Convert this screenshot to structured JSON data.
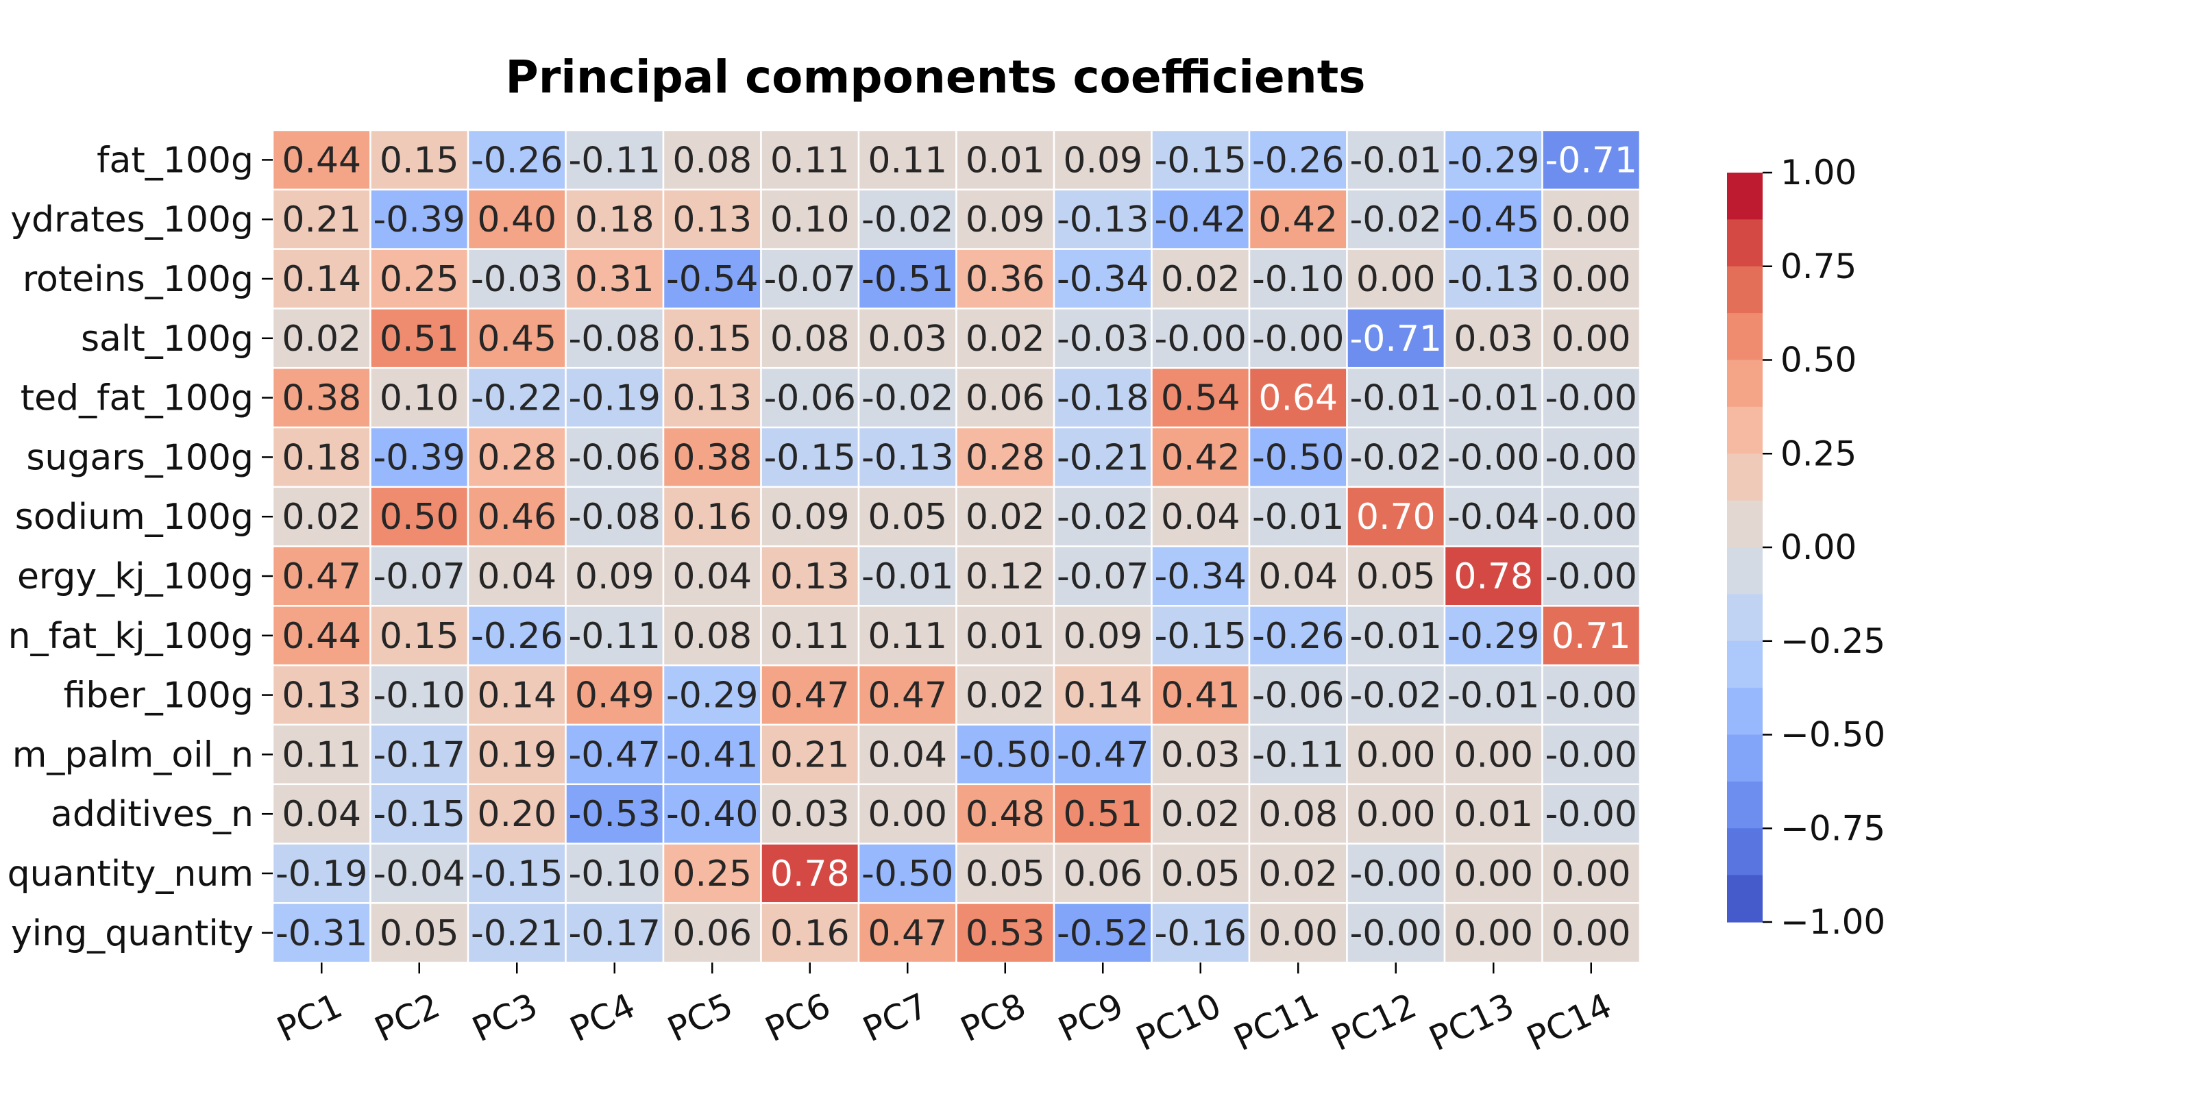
{
  "chart_data": {
    "type": "heatmap",
    "title": "Principal components coefficients",
    "columns": [
      "PC1",
      "PC2",
      "PC3",
      "PC4",
      "PC5",
      "PC6",
      "PC7",
      "PC8",
      "PC9",
      "PC10",
      "PC11",
      "PC12",
      "PC13",
      "PC14"
    ],
    "rows": [
      "fat_100g",
      "ydrates_100g",
      "roteins_100g",
      "salt_100g",
      "ted_fat_100g",
      "sugars_100g",
      "sodium_100g",
      "ergy_kj_100g",
      "n_fat_kj_100g",
      "fiber_100g",
      "m_palm_oil_n",
      "additives_n",
      "quantity_num",
      "ying_quantity"
    ],
    "values": [
      [
        0.44,
        0.15,
        -0.26,
        -0.11,
        0.08,
        0.11,
        0.11,
        0.01,
        0.09,
        -0.15,
        -0.26,
        -0.01,
        -0.29,
        -0.71
      ],
      [
        0.21,
        -0.39,
        0.4,
        0.18,
        0.13,
        0.1,
        -0.02,
        0.09,
        -0.13,
        -0.42,
        0.42,
        -0.02,
        -0.45,
        0.0
      ],
      [
        0.14,
        0.25,
        -0.03,
        0.31,
        -0.54,
        -0.07,
        -0.51,
        0.36,
        -0.34,
        0.02,
        -0.1,
        0.0,
        -0.13,
        0.0
      ],
      [
        0.02,
        0.51,
        0.45,
        -0.08,
        0.15,
        0.08,
        0.03,
        0.02,
        -0.03,
        -0.001,
        -0.001,
        -0.71,
        0.03,
        0.0
      ],
      [
        0.38,
        0.1,
        -0.22,
        -0.19,
        0.13,
        -0.06,
        -0.02,
        0.06,
        -0.18,
        0.54,
        0.64,
        -0.01,
        -0.01,
        -0.001
      ],
      [
        0.18,
        -0.39,
        0.28,
        -0.06,
        0.38,
        -0.15,
        -0.13,
        0.28,
        -0.21,
        0.42,
        -0.5,
        -0.02,
        -0.001,
        -0.001
      ],
      [
        0.02,
        0.5,
        0.46,
        -0.08,
        0.16,
        0.09,
        0.05,
        0.02,
        -0.02,
        0.04,
        -0.01,
        0.7,
        -0.04,
        -0.001
      ],
      [
        0.47,
        -0.07,
        0.04,
        0.09,
        0.04,
        0.13,
        -0.01,
        0.12,
        -0.07,
        -0.34,
        0.04,
        0.05,
        0.78,
        -0.001
      ],
      [
        0.44,
        0.15,
        -0.26,
        -0.11,
        0.08,
        0.11,
        0.11,
        0.01,
        0.09,
        -0.15,
        -0.26,
        -0.01,
        -0.29,
        0.71
      ],
      [
        0.13,
        -0.1,
        0.14,
        0.49,
        -0.29,
        0.47,
        0.47,
        0.02,
        0.14,
        0.41,
        -0.06,
        -0.02,
        -0.01,
        -0.001
      ],
      [
        0.11,
        -0.17,
        0.19,
        -0.47,
        -0.41,
        0.21,
        0.04,
        -0.5,
        -0.47,
        0.03,
        -0.11,
        0.0,
        0.0,
        -0.001
      ],
      [
        0.04,
        -0.15,
        0.2,
        -0.53,
        -0.4,
        0.03,
        0.0,
        0.48,
        0.51,
        0.02,
        0.08,
        0.0,
        0.01,
        -0.001
      ],
      [
        -0.19,
        -0.04,
        -0.15,
        -0.1,
        0.25,
        0.78,
        -0.5,
        0.05,
        0.06,
        0.05,
        0.02,
        -0.001,
        0.0,
        0.0
      ],
      [
        -0.31,
        0.05,
        -0.21,
        -0.17,
        0.06,
        0.16,
        0.47,
        0.53,
        -0.52,
        -0.16,
        0.0,
        -0.001,
        0.0,
        0.0
      ]
    ],
    "value_format": "2 decimals",
    "colormap": "coolwarm",
    "vmin": -1.0,
    "vmax": 1.0,
    "colorbar_ticks": [
      "1.00",
      "0.75",
      "0.50",
      "0.25",
      "0.00",
      "−0.25",
      "−0.50",
      "−0.75",
      "−1.00"
    ],
    "colors": {
      "low": "#3b4cc0",
      "mid": "#dddddd",
      "high": "#b40426",
      "cell_border": "#ffffff"
    }
  }
}
